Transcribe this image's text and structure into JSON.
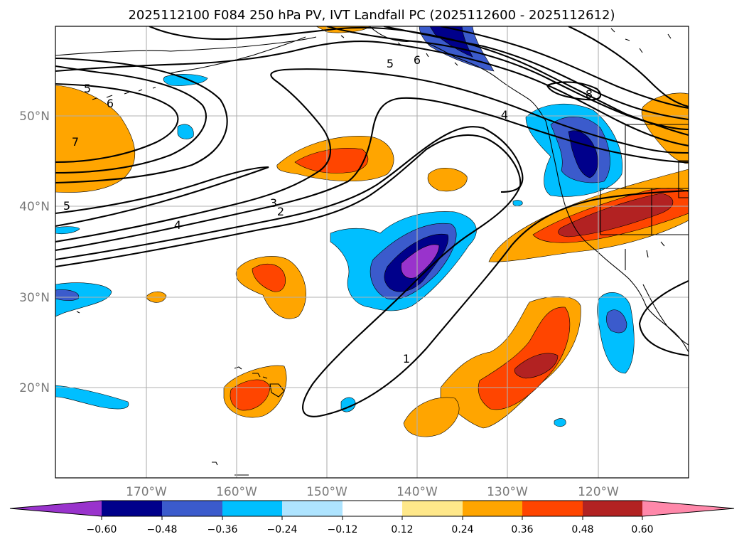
{
  "title": "2025112100 F084 250 hPa PV, IVT Landfall PC (2025112600 - 2025112612)",
  "longitude_labels": [
    "170°W",
    "160°W",
    "150°W",
    "140°W",
    "130°W",
    "120°W"
  ],
  "latitude_labels": [
    "50°N",
    "40°N",
    "30°N",
    "20°N"
  ],
  "contour_labels": [
    "5",
    "6",
    "7",
    "5",
    "4",
    "3",
    "2",
    "5",
    "6",
    "4",
    "8",
    "1"
  ],
  "colorbar": {
    "tick_labels": [
      "−0.60",
      "−0.48",
      "−0.36",
      "−0.24",
      "−0.12",
      "0.12",
      "0.24",
      "0.36",
      "0.48",
      "0.60"
    ],
    "colors": [
      "#9933cc",
      "#00008b",
      "#3b5bcc",
      "#00bfff",
      "#aee4ff",
      "#ffffff",
      "#ffe88a",
      "#ffa500",
      "#ff4500",
      "#b22222",
      "#ff88aa"
    ]
  },
  "palette": {
    "orange": "#ffa500",
    "red_orange": "#ff4500",
    "dark_red": "#b22222",
    "pink": "#ff88aa",
    "light_blue": "#00bfff",
    "medium_blue": "#3b5bcc",
    "navy": "#00008b",
    "purple": "#9933cc",
    "grid": "#b0b0b0",
    "contour": "#000000",
    "axis_label": "#7a7a7a"
  }
}
